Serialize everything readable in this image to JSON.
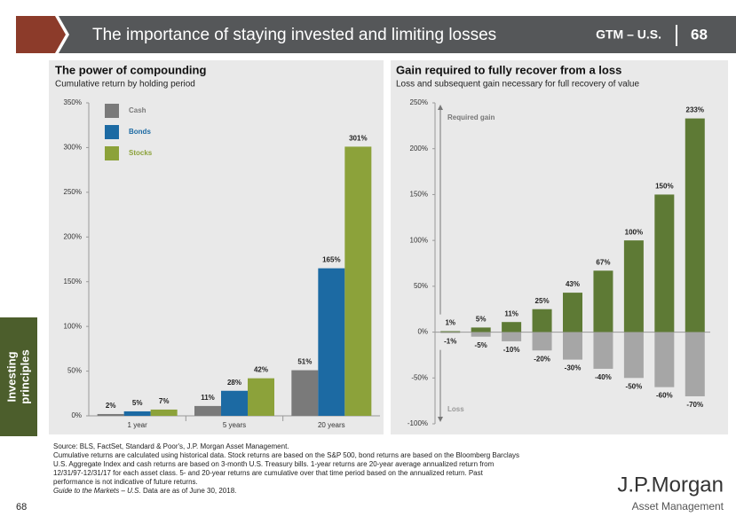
{
  "header": {
    "title": "The importance of staying invested and limiting losses",
    "series_name": "GTM – U.S.",
    "page": "68"
  },
  "side_tab": [
    "Investing",
    "principles"
  ],
  "page_number": "68",
  "notes": [
    "Source: BLS, FactSet, Standard & Poor's, J.P. Morgan Asset Management.",
    "Cumulative returns are calculated using historical data. Stock returns are based on the S&P 500, bond returns are based on the Bloomberg Barclays",
    "U.S. Aggregate Index and cash returns are based on 3-month U.S. Treasury bills. 1-year returns are 20-year average annualized return from",
    "12/31/97-12/31/17 for each asset class. 5- and 20-year returns are cumulative over that time period based on the annualized return. Past",
    "performance is not indicative of future returns."
  ],
  "as_of": {
    "guide": "Guide to the Markets – U.S.",
    "text": "Data are as of June 30, 2018."
  },
  "logo": {
    "name": "J.P.Morgan",
    "division": "Asset Management"
  },
  "chart_data": [
    {
      "type": "bar",
      "title": "The power of compounding",
      "subtitle": "Cumulative return by holding period",
      "categories": [
        "1 year",
        "5 years",
        "20 years"
      ],
      "series": [
        {
          "name": "Cash",
          "color": "#7a7a7a",
          "values": [
            2,
            11,
            51
          ],
          "value_labels": [
            "2%",
            "11%",
            "51%"
          ]
        },
        {
          "name": "Bonds",
          "color": "#1c6aa3",
          "values": [
            5,
            28,
            165
          ],
          "value_labels": [
            "5%",
            "28%",
            "165%"
          ]
        },
        {
          "name": "Stocks",
          "color": "#8ca23a",
          "values": [
            7,
            42,
            301
          ],
          "value_labels": [
            "7%",
            "42%",
            "301%"
          ]
        }
      ],
      "ylim": [
        0,
        350
      ],
      "yticks": [
        {
          "value": 0,
          "label": "0%"
        },
        {
          "value": 50,
          "label": "50%"
        },
        {
          "value": 100,
          "label": "100%"
        },
        {
          "value": 150,
          "label": "150%"
        },
        {
          "value": 200,
          "label": "200%"
        },
        {
          "value": 250,
          "label": "250%"
        },
        {
          "value": 300,
          "label": "300%"
        },
        {
          "value": 350,
          "label": "350%"
        }
      ],
      "legend": "top-left"
    },
    {
      "type": "bar",
      "title": "Gain required to fully recover from a loss",
      "subtitle": "Loss and subsequent gain necessary for full recovery of value",
      "categories": [
        null,
        null,
        null,
        null,
        null,
        null,
        null,
        null,
        null
      ],
      "series": [
        {
          "name": "Required gain",
          "color": "#5e7a35",
          "values": [
            1,
            5,
            11,
            25,
            43,
            67,
            100,
            150,
            233
          ],
          "value_labels": [
            "1%",
            "5%",
            "11%",
            "25%",
            "43%",
            "67%",
            "100%",
            "150%",
            "233%"
          ]
        },
        {
          "name": "Loss",
          "color": "#a6a6a6",
          "values": [
            -1,
            -5,
            -10,
            -20,
            -30,
            -40,
            -50,
            -60,
            -70
          ],
          "value_labels": [
            "-1%",
            "-5%",
            "-10%",
            "-20%",
            "-30%",
            "-40%",
            "-50%",
            "-60%",
            "-70%"
          ]
        }
      ],
      "ylim": [
        -100,
        250
      ],
      "yticks": [
        {
          "value": -100,
          "label": "-100%"
        },
        {
          "value": -50,
          "label": "-50%"
        },
        {
          "value": 0,
          "label": "0%"
        },
        {
          "value": 50,
          "label": "50%"
        },
        {
          "value": 100,
          "label": "100%"
        },
        {
          "value": 150,
          "label": "150%"
        },
        {
          "value": 200,
          "label": "200%"
        },
        {
          "value": 250,
          "label": "250%"
        }
      ]
    }
  ]
}
